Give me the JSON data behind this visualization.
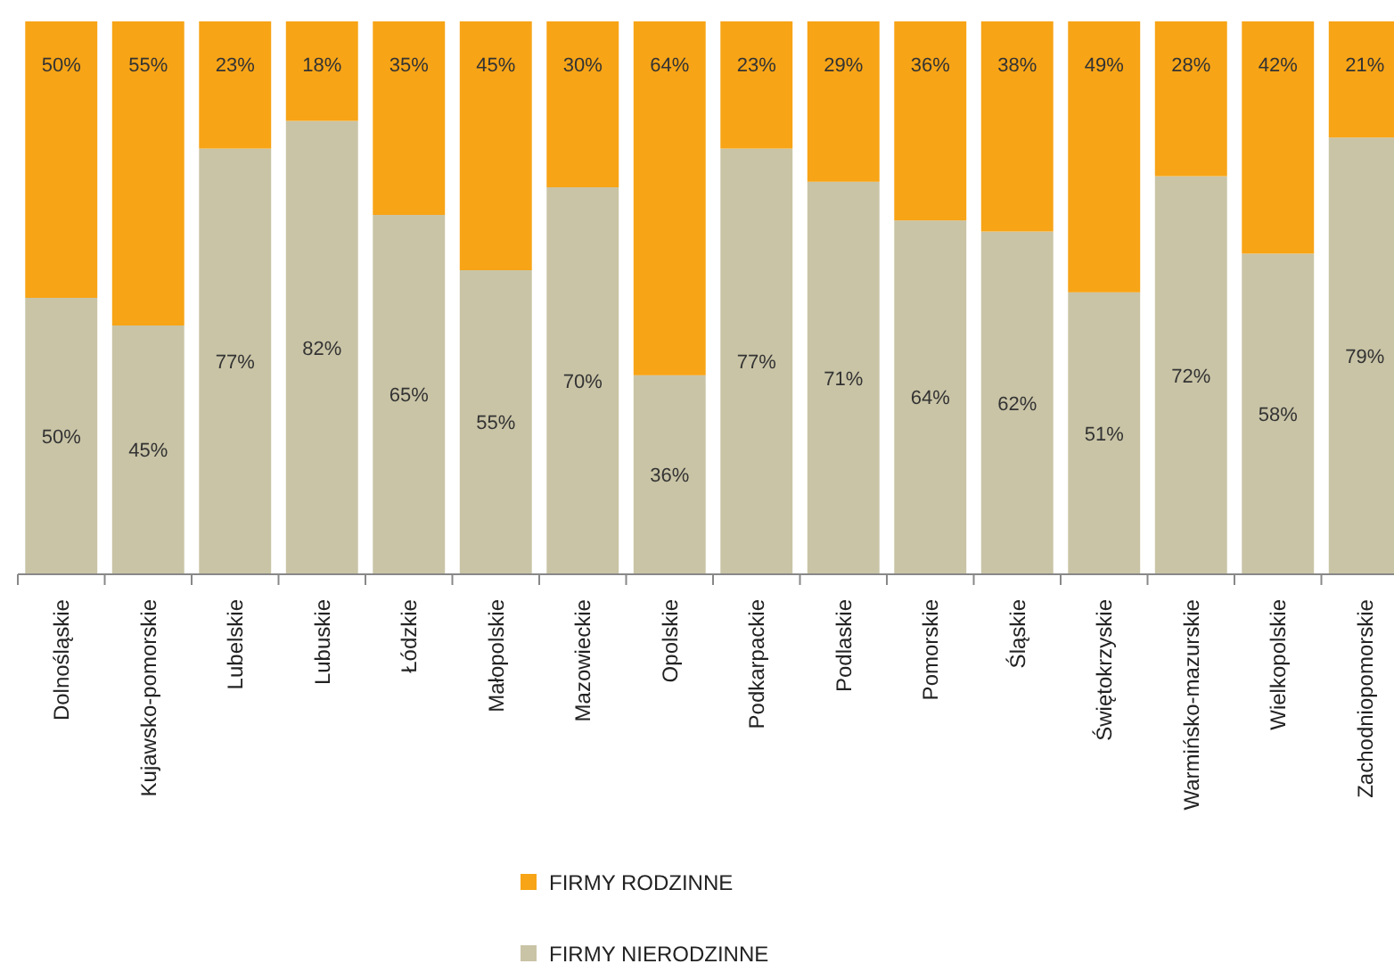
{
  "chart_data": {
    "type": "bar",
    "stacked": true,
    "categories": [
      "Dolnośląskie",
      "Kujawsko-pomorskie",
      "Lubelskie",
      "Lubuskie",
      "Łódzkie",
      "Małopolskie",
      "Mazowieckie",
      "Opolskie",
      "Podkarpackie",
      "Podlaskie",
      "Pomorskie",
      "Śląskie",
      "Świętokrzyskie",
      "Warmińsko-mazurskie",
      "Wielkopolskie",
      "Zachodniopomorskie"
    ],
    "series": [
      {
        "name": "FIRMY NIERODZINNE",
        "color": "#c9c4a6",
        "values": [
          50,
          45,
          77,
          82,
          65,
          55,
          70,
          36,
          77,
          71,
          64,
          62,
          51,
          72,
          58,
          79
        ],
        "value_labels": [
          "50%",
          "45%",
          "77%",
          "82%",
          "65%",
          "55%",
          "70%",
          "36%",
          "77%",
          "71%",
          "64%",
          "62%",
          "51%",
          "72%",
          "58%",
          "79%"
        ]
      },
      {
        "name": "FIRMY RODZINNE",
        "color": "#f7a416",
        "values": [
          50,
          55,
          23,
          18,
          35,
          45,
          30,
          64,
          23,
          29,
          36,
          38,
          49,
          28,
          42,
          21
        ],
        "value_labels": [
          "50%",
          "55%",
          "23%",
          "18%",
          "35%",
          "45%",
          "30%",
          "64%",
          "23%",
          "29%",
          "36%",
          "38%",
          "49%",
          "28%",
          "42%",
          "21%"
        ]
      }
    ],
    "ylim": [
      0,
      100
    ],
    "tick_labels": "x",
    "legend": "bottom"
  }
}
